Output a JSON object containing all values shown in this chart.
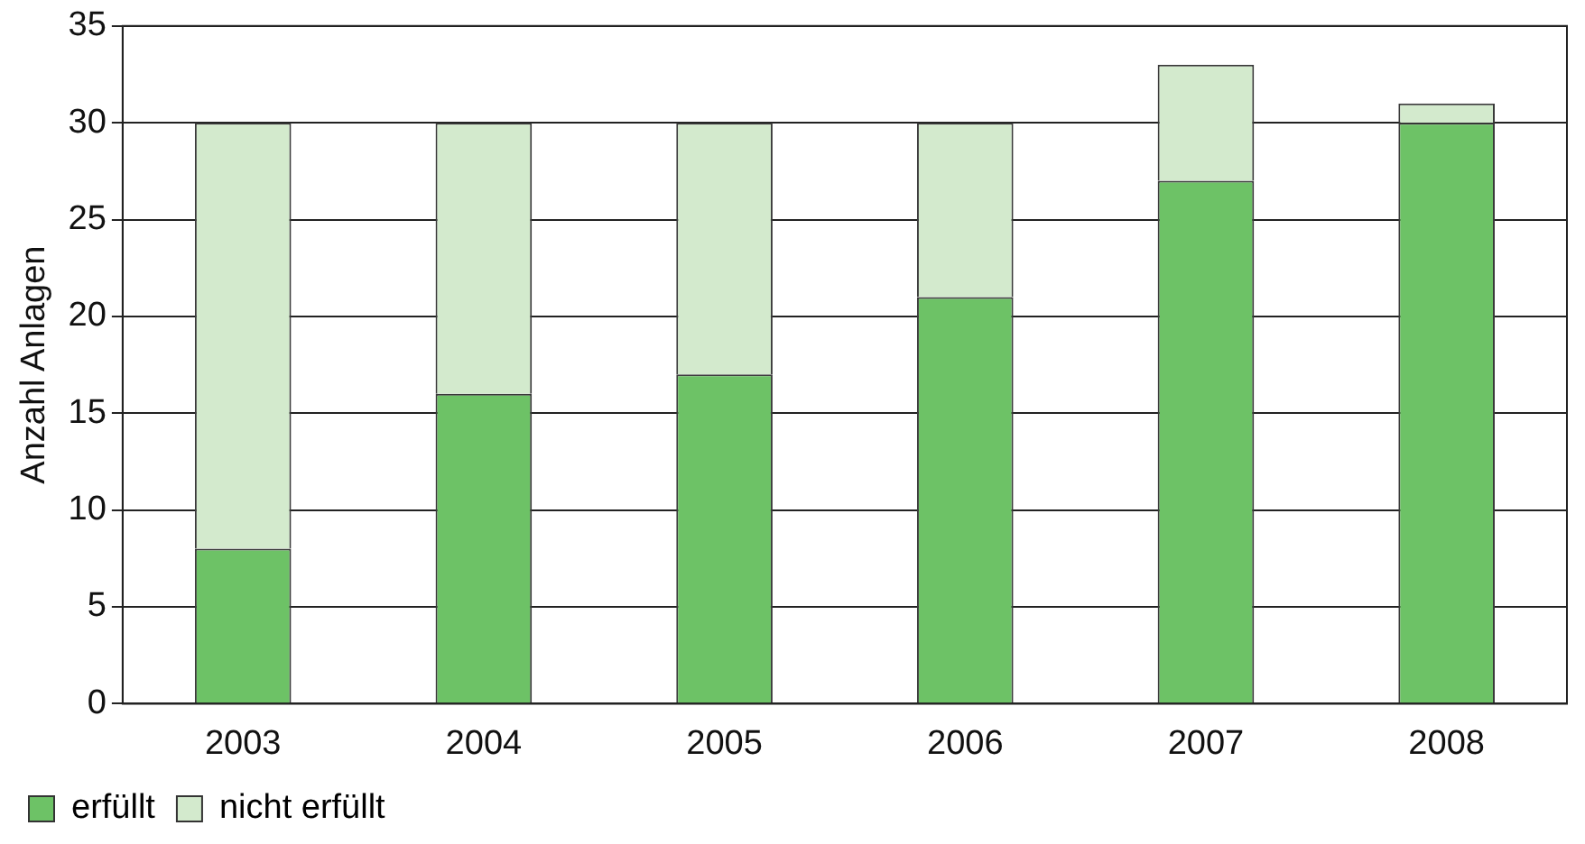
{
  "chart_data": {
    "type": "bar",
    "stacked": true,
    "ylabel": "Anzahl Anlagen",
    "categories": [
      "2003",
      "2004",
      "2005",
      "2006",
      "2007",
      "2008"
    ],
    "series": [
      {
        "name": "erfüllt",
        "color": "#6dc266",
        "values": [
          8,
          16,
          17,
          21,
          27,
          30
        ]
      },
      {
        "name": "nicht erfüllt",
        "color": "#d3eacd",
        "values": [
          22,
          14,
          13,
          9,
          6,
          1
        ]
      }
    ],
    "ylim": [
      0,
      35
    ],
    "yticks": [
      0,
      5,
      10,
      15,
      20,
      25,
      30,
      35
    ],
    "grid": "y",
    "legend": "bottom left"
  }
}
